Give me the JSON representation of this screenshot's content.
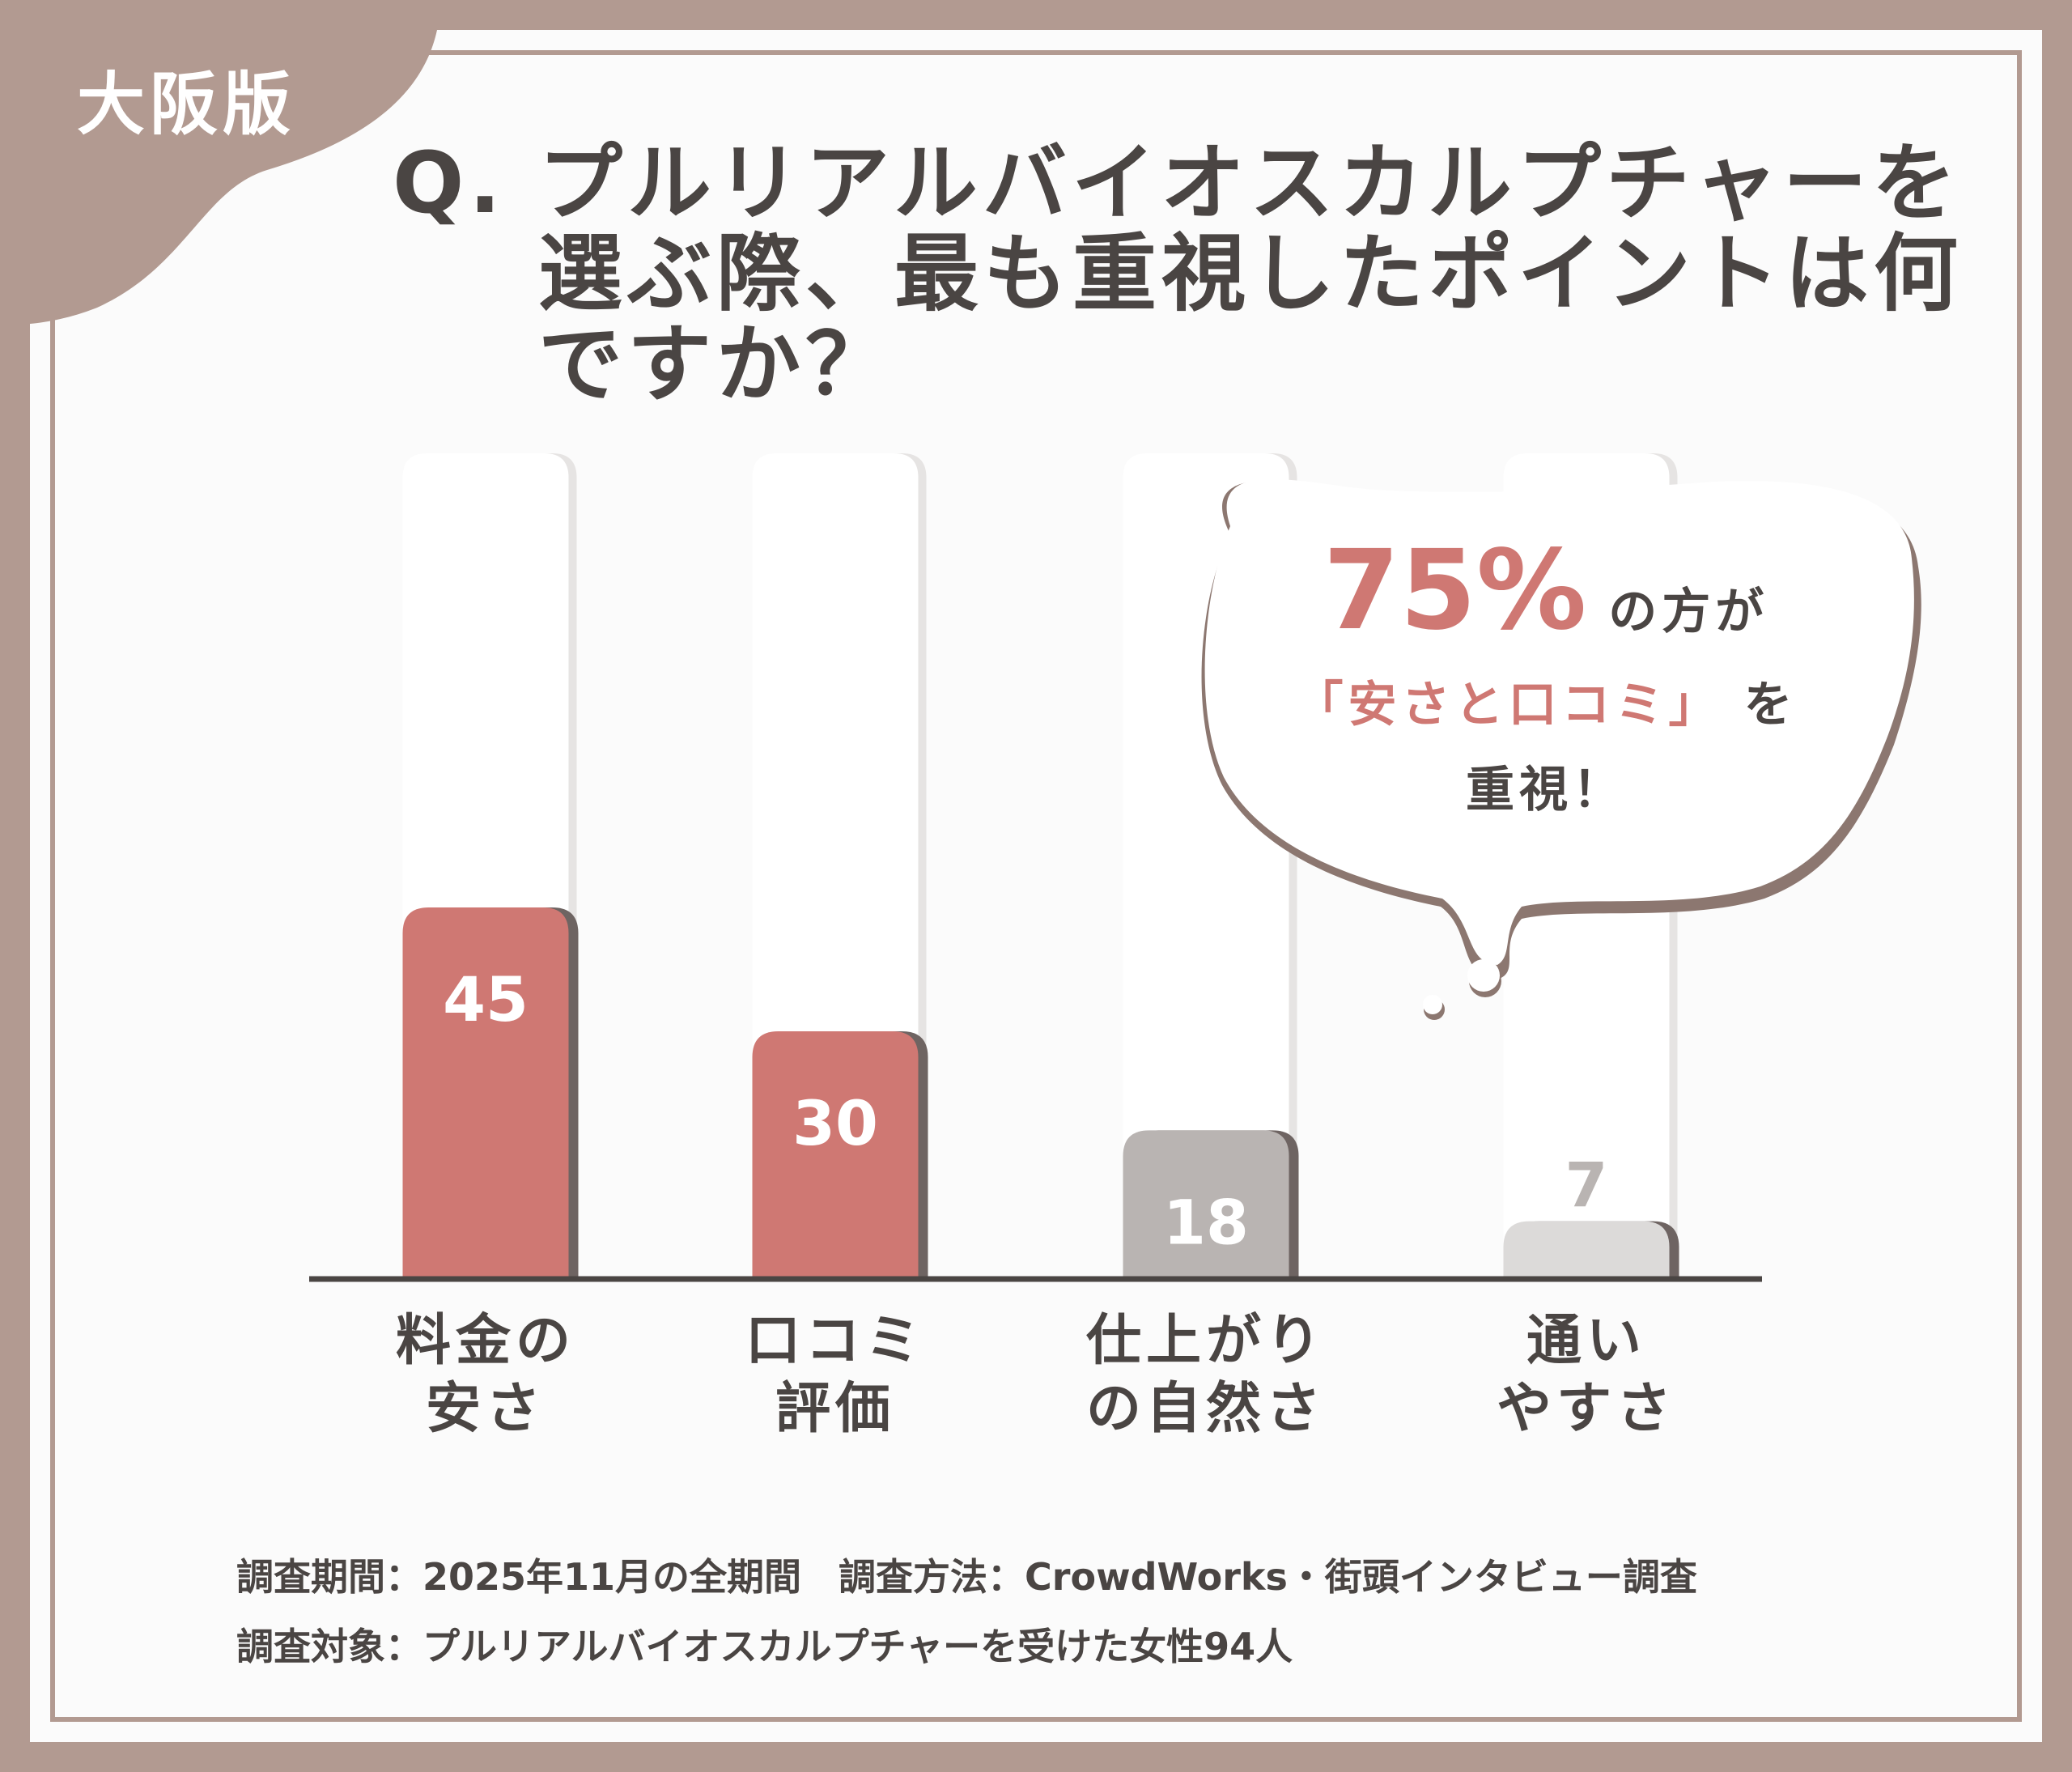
{
  "region_tag": "大阪版",
  "question": {
    "mark": "Q.",
    "text": "プルリアルバイオスカルプチャーを選ぶ際、最も重視したポイントは何ですか？"
  },
  "callout": {
    "percent": "75%",
    "line1_suffix": "の方が",
    "highlight": "「安さと口コミ」",
    "line2_suffix": "を",
    "line3": "重視！"
  },
  "chart_data": {
    "type": "bar",
    "categories": [
      "料金の\n安さ",
      "口コミ\n評価",
      "仕上がり\nの自然さ",
      "通い\nやすさ"
    ],
    "values": [
      45,
      30,
      18,
      7
    ],
    "value_labels": [
      "45",
      "30",
      "18",
      "7"
    ],
    "ylim": [
      0,
      100
    ],
    "grid": false,
    "colors": [
      "#cf7873",
      "#cf7873",
      "#b9b4b2",
      "#dcdad9"
    ],
    "label_colors": [
      "#ffffff",
      "#ffffff",
      "#ffffff",
      "#b9b4b2"
    ]
  },
  "footer": {
    "line1": "調査期間：2025年11月の全期間　調査方法：CrowdWorks・街頭インタビュー調査",
    "line2": "調査対象：プルリアルバイオスカルプチャーを受けた女性94人"
  },
  "colors": {
    "background": "#b29a91",
    "accent": "#cf7873",
    "text": "#4a4543"
  }
}
